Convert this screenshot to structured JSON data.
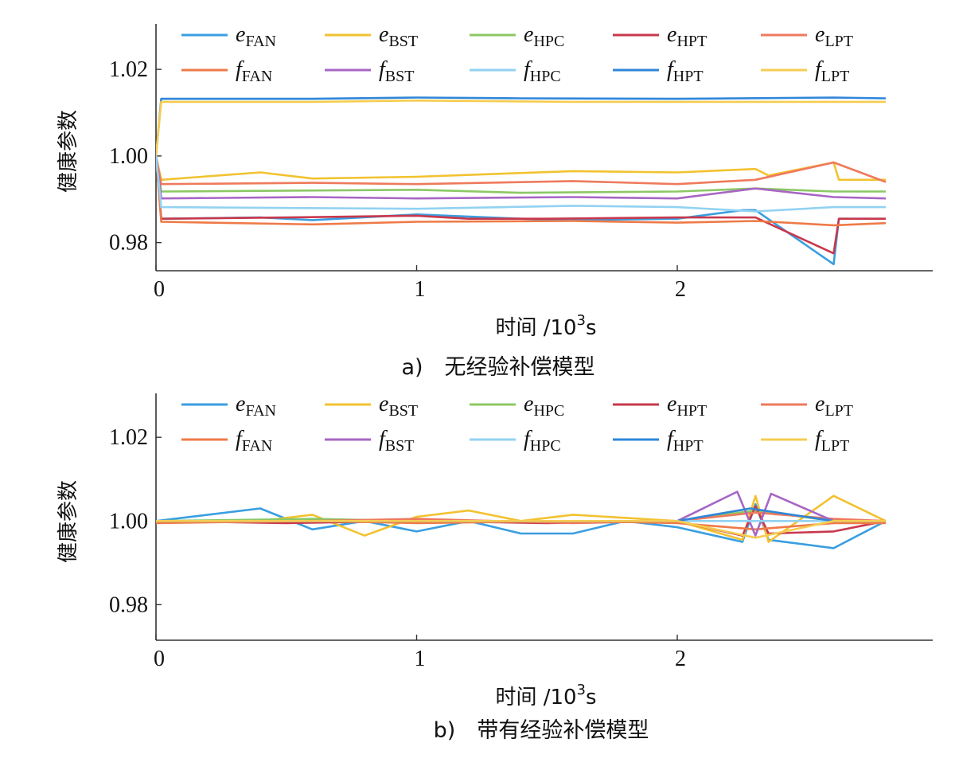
{
  "series_styles": [
    {
      "id": "e_FAN",
      "name": "e",
      "sub": "FAN",
      "color": "#3a9ee0"
    },
    {
      "id": "e_BST",
      "name": "e",
      "sub": "BST",
      "color": "#f2c230"
    },
    {
      "id": "e_HPC",
      "name": "e",
      "sub": "HPC",
      "color": "#8cc864"
    },
    {
      "id": "e_HPT",
      "name": "e",
      "sub": "HPT",
      "color": "#c8384c"
    },
    {
      "id": "e_LPT",
      "name": "e",
      "sub": "LPT",
      "color": "#ee7a5c"
    },
    {
      "id": "f_FAN",
      "name": "f",
      "sub": "FAN",
      "color": "#ee7a48"
    },
    {
      "id": "f_BST",
      "name": "f",
      "sub": "BST",
      "color": "#a866c4"
    },
    {
      "id": "f_HPC",
      "name": "f",
      "sub": "HPC",
      "color": "#92d2f2"
    },
    {
      "id": "f_HPT",
      "name": "f",
      "sub": "HPT",
      "color": "#2f86d8"
    },
    {
      "id": "f_LPT",
      "name": "f",
      "sub": "LPT",
      "color": "#f6cc50"
    }
  ],
  "chart_data": [
    {
      "type": "line",
      "caption": "a)　无经验补偿模型",
      "xlabel_main": "时间 /10",
      "xlabel_exp": "3",
      "xlabel_unit": "s",
      "ylabel": "健康参数",
      "xlim": [
        0,
        2.98
      ],
      "ylim": [
        0.9735,
        1.0305
      ],
      "xticks": [
        0,
        1,
        2
      ],
      "xtick_labels": [
        "0",
        "1",
        "2"
      ],
      "yticks": [
        0.98,
        1.0,
        1.02
      ],
      "ytick_labels": [
        "0.98",
        "1.00",
        "1.02"
      ],
      "legend_position": "top",
      "series": [
        {
          "id": "e_FAN",
          "x": [
            0,
            0.02,
            0.4,
            0.6,
            1.0,
            1.4,
            1.6,
            2.0,
            2.25,
            2.3,
            2.6,
            2.62,
            2.8
          ],
          "y": [
            1.0,
            0.9855,
            0.9858,
            0.9852,
            0.9865,
            0.9855,
            0.9852,
            0.9855,
            0.9875,
            0.9875,
            0.975,
            0.9855,
            0.9855
          ]
        },
        {
          "id": "e_BST",
          "x": [
            0,
            0.02,
            0.4,
            0.6,
            1.0,
            1.6,
            2.0,
            2.3,
            2.35,
            2.6,
            2.62,
            2.8
          ],
          "y": [
            1.0,
            0.9945,
            0.9962,
            0.9948,
            0.9952,
            0.9965,
            0.9962,
            0.997,
            0.9955,
            0.9985,
            0.9945,
            0.9945
          ]
        },
        {
          "id": "e_HPC",
          "x": [
            0,
            0.02,
            1.0,
            1.4,
            2.0,
            2.3,
            2.6,
            2.8
          ],
          "y": [
            1.0,
            0.9918,
            0.9922,
            0.9915,
            0.9918,
            0.9925,
            0.9918,
            0.9918
          ]
        },
        {
          "id": "e_HPT",
          "x": [
            0,
            0.02,
            0.5,
            1.0,
            1.2,
            1.5,
            2.0,
            2.3,
            2.6,
            2.62,
            2.8
          ],
          "y": [
            1.0,
            0.9855,
            0.9858,
            0.9862,
            0.9855,
            0.9855,
            0.9858,
            0.9858,
            0.9775,
            0.9855,
            0.9855
          ]
        },
        {
          "id": "e_LPT",
          "x": [
            0,
            0.02,
            0.6,
            1.0,
            1.6,
            2.0,
            2.3,
            2.6,
            2.8
          ],
          "y": [
            1.0,
            0.9935,
            0.9938,
            0.9935,
            0.9942,
            0.9935,
            0.9945,
            0.9985,
            0.994
          ]
        },
        {
          "id": "f_FAN",
          "x": [
            0,
            0.02,
            0.6,
            1.0,
            1.6,
            2.0,
            2.3,
            2.6,
            2.8
          ],
          "y": [
            1.0,
            0.9848,
            0.9842,
            0.9848,
            0.985,
            0.9846,
            0.985,
            0.984,
            0.9845
          ]
        },
        {
          "id": "f_BST",
          "x": [
            0,
            0.02,
            0.6,
            1.0,
            1.6,
            2.0,
            2.3,
            2.6,
            2.8
          ],
          "y": [
            1.0,
            0.9902,
            0.9905,
            0.9902,
            0.9905,
            0.9902,
            0.9925,
            0.9905,
            0.9902
          ]
        },
        {
          "id": "f_HPC",
          "x": [
            0,
            0.02,
            1.0,
            1.6,
            2.0,
            2.3,
            2.6,
            2.8
          ],
          "y": [
            1.0,
            0.9882,
            0.9878,
            0.9885,
            0.9882,
            0.9872,
            0.9882,
            0.9882
          ]
        },
        {
          "id": "f_HPT",
          "x": [
            0,
            0.02,
            0.6,
            1.0,
            1.4,
            2.0,
            2.6,
            2.8
          ],
          "y": [
            1.0,
            1.0132,
            1.0132,
            1.0135,
            1.0133,
            1.0132,
            1.0135,
            1.0133
          ]
        },
        {
          "id": "f_LPT",
          "x": [
            0,
            0.02,
            0.6,
            1.0,
            1.6,
            2.0,
            2.6,
            2.8
          ],
          "y": [
            1.0,
            1.0125,
            1.0125,
            1.0128,
            1.0125,
            1.0125,
            1.0125,
            1.0125
          ]
        }
      ]
    },
    {
      "type": "line",
      "caption": "b)　带有经验补偿模型",
      "xlabel_main": "时间 /10",
      "xlabel_exp": "3",
      "xlabel_unit": "s",
      "ylabel": "健康参数",
      "xlim": [
        0,
        2.98
      ],
      "ylim": [
        0.9715,
        1.0305
      ],
      "xticks": [
        0,
        1,
        2
      ],
      "xtick_labels": [
        "0",
        "1",
        "2"
      ],
      "yticks": [
        0.98,
        1.0,
        1.02
      ],
      "ytick_labels": [
        "0.98",
        "1.00",
        "1.02"
      ],
      "legend_position": "top",
      "series": [
        {
          "id": "e_FAN",
          "x": [
            0,
            0.4,
            0.6,
            0.8,
            1.0,
            1.2,
            1.4,
            1.6,
            1.8,
            2.0,
            2.25,
            2.3,
            2.35,
            2.6,
            2.8
          ],
          "y": [
            1.0,
            1.003,
            0.998,
            1.0,
            0.9975,
            1.0,
            0.997,
            0.997,
            1.0,
            0.9985,
            0.995,
            1.004,
            0.9955,
            0.9935,
            1.0
          ]
        },
        {
          "id": "e_BST",
          "x": [
            0,
            0.4,
            0.6,
            0.8,
            1.0,
            1.2,
            1.4,
            1.6,
            2.0,
            2.25,
            2.3,
            2.35,
            2.6,
            2.8
          ],
          "y": [
            1.0,
            1.0,
            1.0015,
            0.9965,
            1.001,
            1.0025,
            1.0,
            1.0015,
            1.0,
            0.9955,
            1.006,
            0.995,
            1.006,
            1.0
          ]
        },
        {
          "id": "e_HPC",
          "x": [
            0,
            0.6,
            1.0,
            1.6,
            2.0,
            2.3,
            2.6,
            2.8
          ],
          "y": [
            1.0,
            1.0005,
            1.0,
            1.0,
            1.0,
            1.0025,
            1.0,
            1.0
          ]
        },
        {
          "id": "e_HPT",
          "x": [
            0,
            0.5,
            1.0,
            1.5,
            2.0,
            2.25,
            2.3,
            2.35,
            2.6,
            2.8
          ],
          "y": [
            1.0,
            0.9995,
            1.0,
            0.9995,
            1.0,
            0.9965,
            1.0035,
            0.997,
            0.9975,
            1.0
          ]
        },
        {
          "id": "e_LPT",
          "x": [
            0,
            0.6,
            1.0,
            1.6,
            2.0,
            2.3,
            2.6,
            2.8
          ],
          "y": [
            1.0,
            1.0,
            1.0005,
            0.9995,
            1.0,
            1.002,
            1.0005,
            1.0
          ]
        },
        {
          "id": "f_FAN",
          "x": [
            0,
            0.6,
            1.0,
            1.6,
            2.0,
            2.3,
            2.6,
            2.8
          ],
          "y": [
            0.9995,
            1.0,
            0.9995,
            1.0,
            0.9995,
            0.998,
            0.9995,
            0.9995
          ]
        },
        {
          "id": "f_BST",
          "x": [
            0,
            0.6,
            1.0,
            1.6,
            2.0,
            2.23,
            2.3,
            2.36,
            2.6,
            2.8
          ],
          "y": [
            1.0,
            1.0,
            1.0,
            1.0,
            1.0,
            1.007,
            0.9965,
            1.0065,
            1.0,
            1.0
          ]
        },
        {
          "id": "f_HPC",
          "x": [
            0,
            0.6,
            1.0,
            1.6,
            2.0,
            2.3,
            2.6,
            2.8
          ],
          "y": [
            1.0,
            1.0,
            1.0,
            1.0,
            1.0,
            1.0,
            1.0,
            1.0
          ]
        },
        {
          "id": "f_HPT",
          "x": [
            0,
            0.6,
            1.0,
            1.6,
            2.0,
            2.28,
            2.6,
            2.8
          ],
          "y": [
            1.0,
            1.0,
            1.0,
            1.0,
            1.0,
            1.003,
            1.0,
            1.0
          ]
        },
        {
          "id": "f_LPT",
          "x": [
            0,
            0.6,
            1.0,
            1.6,
            2.0,
            2.3,
            2.6,
            2.8
          ],
          "y": [
            1.0,
            1.0,
            1.0,
            1.0,
            1.0,
            0.996,
            1.0,
            1.0
          ]
        }
      ]
    }
  ]
}
